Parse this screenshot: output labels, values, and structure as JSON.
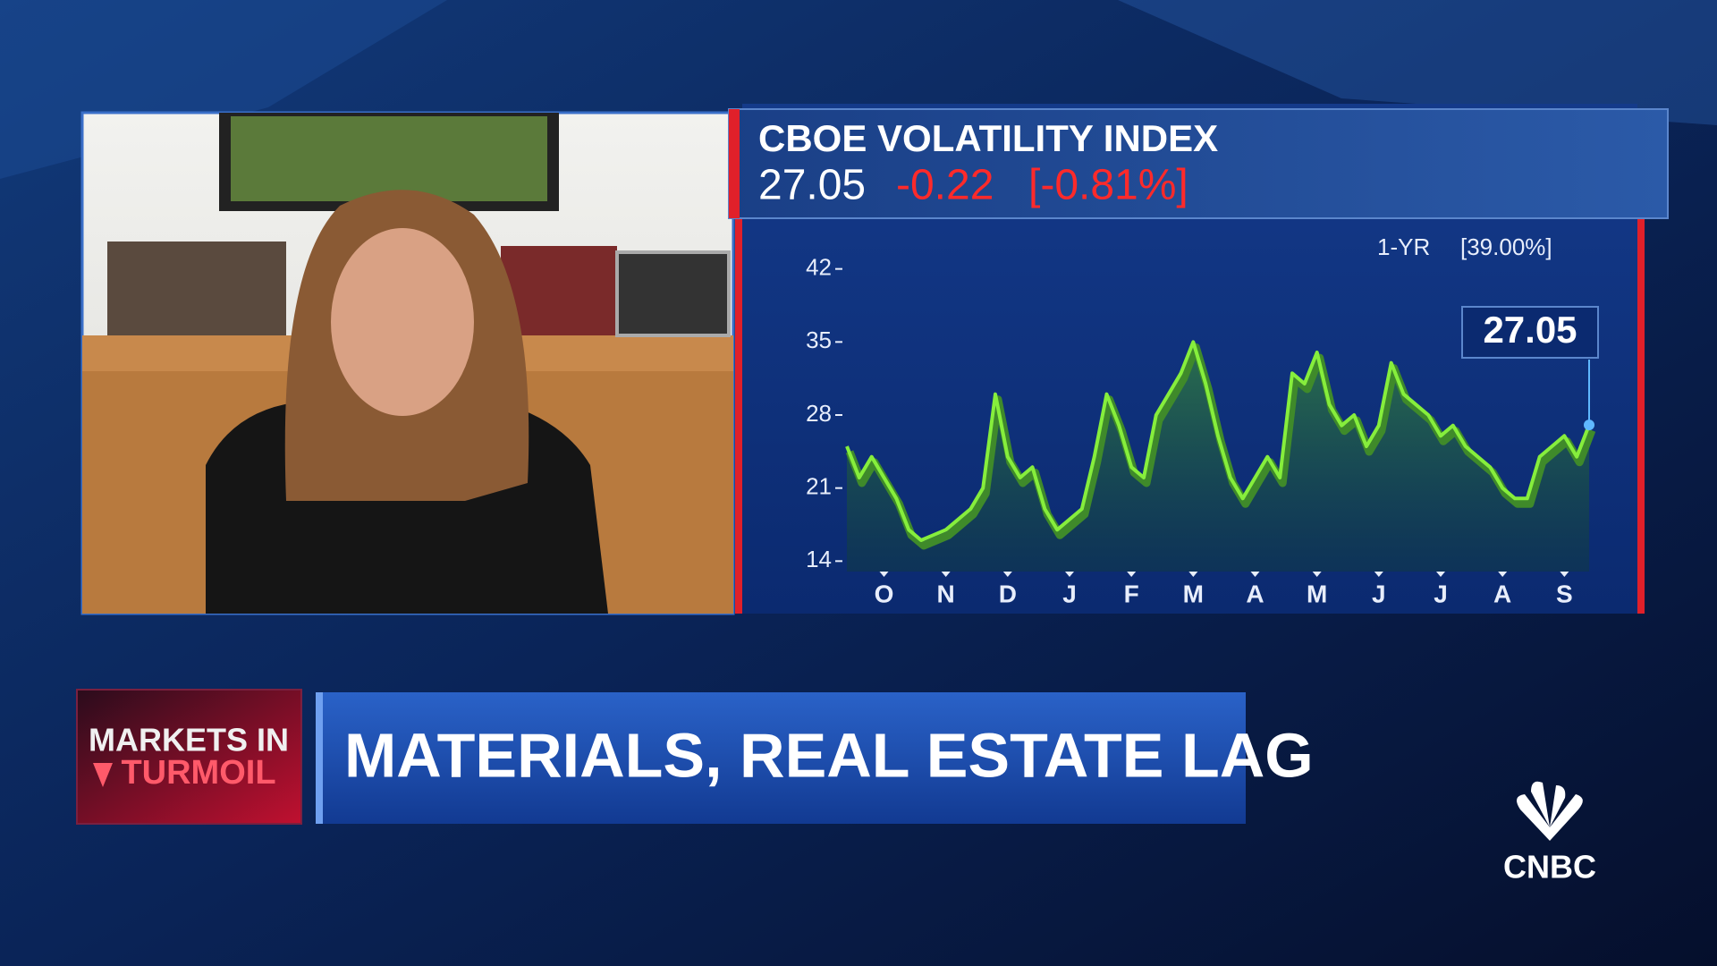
{
  "chart_data": {
    "type": "line",
    "title": "CBOE VOLATILITY INDEX",
    "quote": {
      "last": "27.05",
      "change": "-0.22",
      "change_pct": "[-0.81%]"
    },
    "period": {
      "label": "1-YR",
      "change": "[39.00%]"
    },
    "categories": [
      null,
      null,
      null,
      "O",
      null,
      null,
      null,
      null,
      "N",
      null,
      null,
      null,
      null,
      "D",
      null,
      null,
      null,
      null,
      "J",
      null,
      null,
      null,
      null,
      "F",
      null,
      null,
      null,
      null,
      "M",
      null,
      null,
      null,
      null,
      "A",
      null,
      null,
      null,
      null,
      "M",
      null,
      null,
      null,
      null,
      "J",
      null,
      null,
      null,
      null,
      "J",
      null,
      null,
      null,
      null,
      "A",
      null,
      null,
      null,
      null,
      "S",
      null,
      null
    ],
    "values": [
      25,
      22,
      24,
      22,
      20,
      17,
      16,
      16.5,
      17,
      18,
      19,
      21,
      30,
      24,
      22,
      23,
      19,
      17,
      18,
      19,
      24,
      30,
      27,
      23,
      22,
      28,
      30,
      32,
      35,
      31,
      26,
      22,
      20,
      22,
      24,
      22,
      32,
      31,
      34,
      29,
      27,
      28,
      25,
      27,
      33,
      30,
      29,
      28,
      26,
      27,
      25,
      24,
      23,
      21,
      20,
      20,
      24,
      25,
      26,
      24,
      27.05
    ],
    "color": "#86ee3c",
    "ylim": [
      13,
      43
    ],
    "yticks": [
      14,
      21,
      28,
      35,
      42
    ]
  },
  "lower_third": {
    "tag_line1": "MARKETS IN",
    "tag_line2": "TURMOIL",
    "headline": "MATERIALS, REAL ESTATE LAG"
  },
  "logo": "CNBC"
}
